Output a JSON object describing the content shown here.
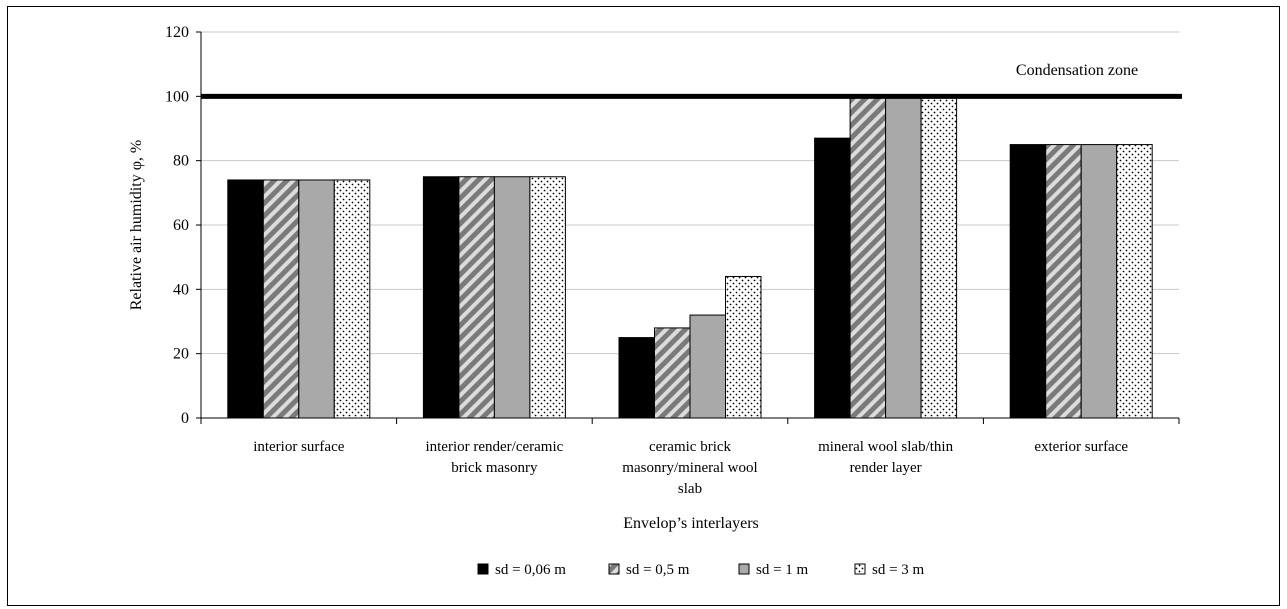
{
  "chart_data": {
    "type": "bar",
    "categories": [
      [
        "interior surface"
      ],
      [
        "interior render/ceramic",
        "brick masonry"
      ],
      [
        "ceramic brick",
        "masonry/mineral wool",
        "slab"
      ],
      [
        "mineral wool slab/thin",
        "render layer"
      ],
      [
        "exterior surface"
      ]
    ],
    "series": [
      {
        "name": "sd = 0,06 m",
        "values": [
          74,
          75,
          25,
          87,
          85
        ],
        "pattern": "solid-black"
      },
      {
        "name": "sd = 0,5 m",
        "values": [
          74,
          75,
          28,
          100,
          85
        ],
        "pattern": "diagonal-stripes"
      },
      {
        "name": "sd = 1 m",
        "values": [
          74,
          75,
          32,
          100,
          85
        ],
        "pattern": "solid-gray"
      },
      {
        "name": "sd = 3 m",
        "values": [
          74,
          75,
          44,
          100,
          85
        ],
        "pattern": "dotted"
      }
    ],
    "xlabel": "Envelop’s interlayers",
    "ylabel": "Relative air humidity φ, %",
    "ylim": [
      0,
      120
    ],
    "yticks": [
      0,
      20,
      40,
      60,
      80,
      100,
      120
    ],
    "reference_line": {
      "value": 100,
      "label": "Condensation zone"
    },
    "grid": true,
    "legend_position": "bottom"
  }
}
